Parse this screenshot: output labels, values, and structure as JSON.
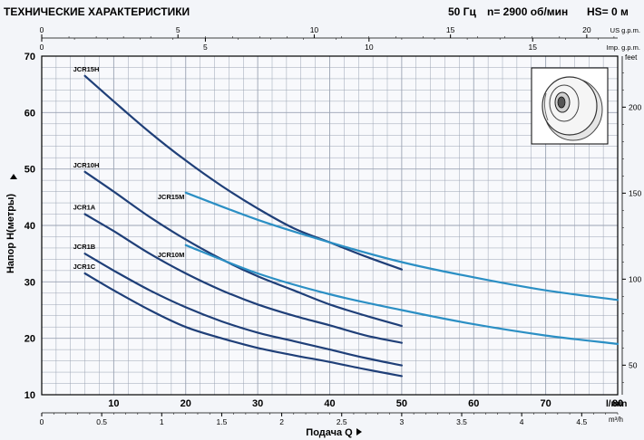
{
  "header": {
    "title": "ТЕХНИЧЕСКИЕ ХАРАКТЕРИСТИКИ",
    "freq": "50 Гц",
    "rpm": "n= 2900 об/мин",
    "hs": "HS= 0 м"
  },
  "colors": {
    "background": "#f3f5f9",
    "grid": "#9aa3b3",
    "axis": "#000000",
    "dark_series": "#1f3f78",
    "light_series": "#2b8fc4"
  },
  "chart_data": {
    "type": "line",
    "grid": true,
    "xlabel": "Подача Q",
    "ylabel": "Напор H(метры)",
    "x_unit": "l/min",
    "xlim": [
      0,
      80
    ],
    "ylim": [
      10,
      70
    ],
    "x_ticks": [
      10,
      20,
      30,
      40,
      50,
      60,
      70,
      80
    ],
    "y_ticks": [
      10,
      20,
      30,
      40,
      50,
      60,
      70
    ],
    "secondary_axes": {
      "m3h": {
        "unit": "m³/h",
        "ticks": [
          "0",
          "0.5",
          "1",
          "1.5",
          "2",
          "2.5",
          "3",
          "3.5",
          "4",
          "4.5"
        ],
        "values": [
          0,
          0.5,
          1,
          1.5,
          2,
          2.5,
          3,
          3.5,
          4,
          4.5
        ]
      },
      "us_gpm": {
        "label": "US g.p.m.",
        "ticks": [
          "0",
          "5",
          "10",
          "15",
          "20"
        ],
        "values": [
          0,
          5,
          10,
          15,
          20
        ]
      },
      "imp_gpm": {
        "label": "Imp. g.p.m.",
        "ticks": [
          "0",
          "5",
          "10",
          "15"
        ],
        "values": [
          0,
          5,
          10,
          15
        ]
      },
      "feet": {
        "label": "feet",
        "ticks": [
          "50",
          "100",
          "150",
          "200"
        ],
        "values": [
          50,
          100,
          150,
          200
        ]
      }
    },
    "series": [
      {
        "name": "JCR15H",
        "style": "dark",
        "x": [
          6,
          10,
          15,
          20,
          25,
          30,
          35,
          40,
          45,
          50
        ],
        "y": [
          66.5,
          62,
          56.5,
          51.5,
          47,
          43,
          39.5,
          37,
          34.5,
          32.2
        ]
      },
      {
        "name": "JCR10H",
        "style": "dark",
        "x": [
          6,
          10,
          15,
          20,
          25,
          30,
          35,
          40,
          45,
          50
        ],
        "y": [
          49.5,
          46,
          41.5,
          37.5,
          34,
          31,
          28.5,
          26,
          24,
          22.2
        ]
      },
      {
        "name": "JCR1A",
        "style": "dark",
        "x": [
          6,
          10,
          15,
          20,
          25,
          30,
          35,
          40,
          45,
          50
        ],
        "y": [
          42,
          39,
          35,
          31.5,
          28.5,
          26,
          24,
          22.3,
          20.5,
          19.2
        ]
      },
      {
        "name": "JCR1B",
        "style": "dark",
        "x": [
          6,
          10,
          15,
          20,
          25,
          30,
          35,
          40,
          45,
          50
        ],
        "y": [
          35,
          32,
          28.5,
          25.5,
          23,
          21,
          19.5,
          18,
          16.5,
          15.2
        ]
      },
      {
        "name": "JCR1C",
        "style": "dark",
        "x": [
          6,
          10,
          15,
          20,
          25,
          30,
          35,
          40,
          45,
          50
        ],
        "y": [
          31.5,
          28.5,
          25,
          22,
          20,
          18.3,
          17,
          15.8,
          14.5,
          13.3
        ]
      },
      {
        "name": "JCR15M",
        "style": "light",
        "x": [
          20,
          30,
          40,
          50,
          60,
          70,
          80
        ],
        "y": [
          45.8,
          41,
          37,
          33.5,
          30.8,
          28.5,
          26.8
        ]
      },
      {
        "name": "JCR10M",
        "style": "light",
        "x": [
          20,
          30,
          40,
          50,
          60,
          70,
          80
        ],
        "y": [
          36.5,
          31.5,
          27.8,
          25,
          22.5,
          20.5,
          19
        ]
      }
    ]
  }
}
